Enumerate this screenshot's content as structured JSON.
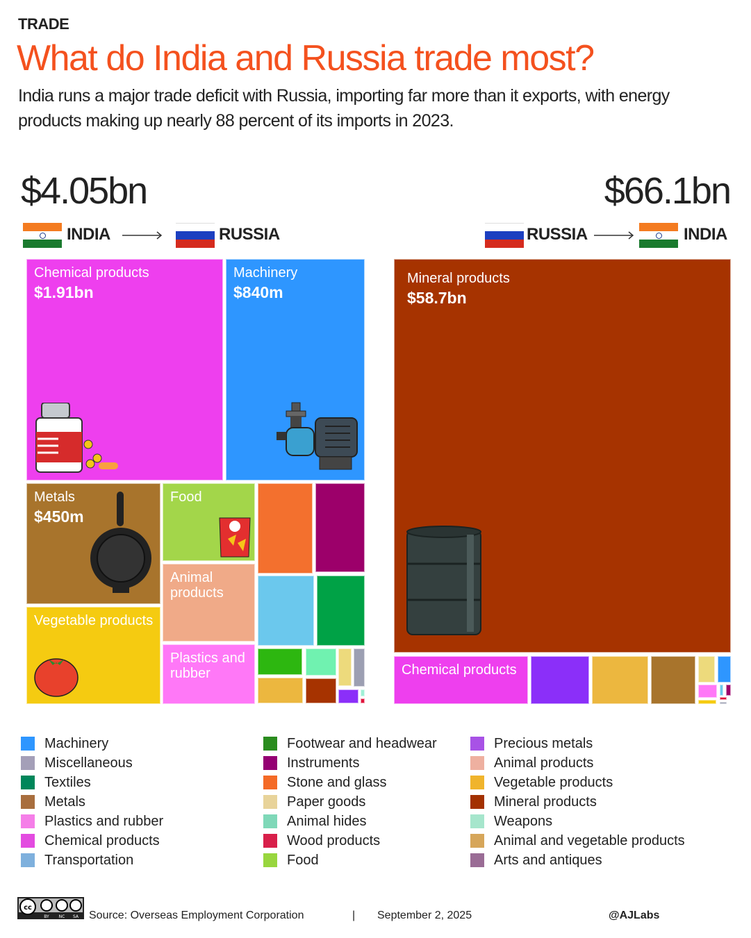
{
  "header": {
    "kicker": "TRADE",
    "title": "What do India and Russia trade most?",
    "subtitle": "India runs a major trade deficit with Russia, importing far more than it exports, with energy products making up nearly 88 percent of its imports in 2023."
  },
  "chart_data": [
    {
      "type": "treemap",
      "total_label": "$4.05bn",
      "from": "INDIA",
      "to": "RUSSIA",
      "items": [
        {
          "category": "Chemical products",
          "label": "Chemical products",
          "value_label": "$1.91bn",
          "color": "#ee3fee"
        },
        {
          "category": "Machinery",
          "label": "Machinery",
          "value_label": "$840m",
          "color": "#2e96ff"
        },
        {
          "category": "Metals",
          "label": "Metals",
          "value_label": "$450m",
          "color": "#a8742c"
        },
        {
          "category": "Vegetable products",
          "label": "Vegetable products",
          "color": "#f5cb11"
        },
        {
          "category": "Food",
          "label": "Food",
          "color": "#a3d64a"
        },
        {
          "category": "Animal products",
          "label": "Animal products",
          "color": "#f0aa88"
        },
        {
          "category": "Plastics and rubber",
          "label": "Plastics and rubber",
          "color": "#ff78f7"
        },
        {
          "category": "Stone and glass",
          "color": "#f3702e"
        },
        {
          "category": "Instruments",
          "color": "#9c006a"
        },
        {
          "category": "Transportation",
          "color": "#6bc8ed"
        },
        {
          "category": "Textiles",
          "color": "#00a246"
        },
        {
          "category": "Footwear and headwear",
          "color": "#2db710"
        },
        {
          "category": "Animal hides",
          "color": "#70f2b0"
        },
        {
          "category": "Paper goods",
          "color": "#edda7c"
        },
        {
          "category": "Miscellaneous",
          "color": "#9c9fb2"
        },
        {
          "category": "Animal and vegetable products",
          "color": "#ecb73f"
        },
        {
          "category": "Mineral products",
          "color": "#a63300"
        },
        {
          "category": "Precious metals",
          "color": "#8b2ff9"
        },
        {
          "category": "Weapons",
          "color": "#9ff0d6"
        },
        {
          "category": "Wood products",
          "color": "#e0143c"
        }
      ]
    },
    {
      "type": "treemap",
      "total_label": "$66.1bn",
      "from": "RUSSIA",
      "to": "INDIA",
      "items": [
        {
          "category": "Mineral products",
          "label": "Mineral products",
          "value_label": "$58.7bn",
          "color": "#a63300"
        },
        {
          "category": "Chemical products",
          "label": "Chemical products",
          "color": "#ee3fee"
        },
        {
          "category": "Precious metals",
          "color": "#8b2ff9"
        },
        {
          "category": "Animal and vegetable products",
          "color": "#ecb73f"
        },
        {
          "category": "Metals",
          "color": "#a8742c"
        },
        {
          "category": "Paper goods",
          "color": "#edda7c"
        },
        {
          "category": "Machinery",
          "color": "#2e96ff"
        },
        {
          "category": "Plastics and rubber",
          "color": "#ff78f7"
        },
        {
          "category": "Transportation",
          "color": "#6bc8ed"
        },
        {
          "category": "Instruments",
          "color": "#9c006a"
        },
        {
          "category": "Vegetable products",
          "color": "#f5cb11"
        },
        {
          "category": "Wood products",
          "color": "#e0143c"
        },
        {
          "category": "Miscellaneous",
          "color": "#9c9fb2"
        }
      ]
    }
  ],
  "legend": [
    {
      "label": "Machinery",
      "color": "#2e96ff"
    },
    {
      "label": "Miscellaneous",
      "color": "#a49fb8"
    },
    {
      "label": "Textiles",
      "color": "#00865a"
    },
    {
      "label": "Metals",
      "color": "#a86e3e"
    },
    {
      "label": "Plastics and rubber",
      "color": "#f57ee8"
    },
    {
      "label": "Chemical products",
      "color": "#e34be0"
    },
    {
      "label": "Transportation",
      "color": "#7eb0dd"
    },
    {
      "label": "Footwear and headwear",
      "color": "#2a8c1e"
    },
    {
      "label": "Instruments",
      "color": "#940072"
    },
    {
      "label": "Stone and glass",
      "color": "#f46a26"
    },
    {
      "label": "Paper goods",
      "color": "#e8d39a"
    },
    {
      "label": "Animal hides",
      "color": "#7fd8b8"
    },
    {
      "label": "Wood products",
      "color": "#d81f4a"
    },
    {
      "label": "Food",
      "color": "#98d63e"
    },
    {
      "label": "Precious metals",
      "color": "#a852e6"
    },
    {
      "label": "Animal products",
      "color": "#eeb0a0"
    },
    {
      "label": "Vegetable products",
      "color": "#f0b42c"
    },
    {
      "label": "Mineral products",
      "color": "#a33100"
    },
    {
      "label": "Weapons",
      "color": "#a6e6cc"
    },
    {
      "label": "Animal and vegetable products",
      "color": "#d6a65a"
    },
    {
      "label": "Arts and antiques",
      "color": "#9a6c95"
    }
  ],
  "footer": {
    "license": "cc BY NC SA",
    "source": "Source:  Overseas Employment Corporation",
    "separator": "|",
    "date": "September 2, 2025",
    "credit": "@AJLabs"
  }
}
